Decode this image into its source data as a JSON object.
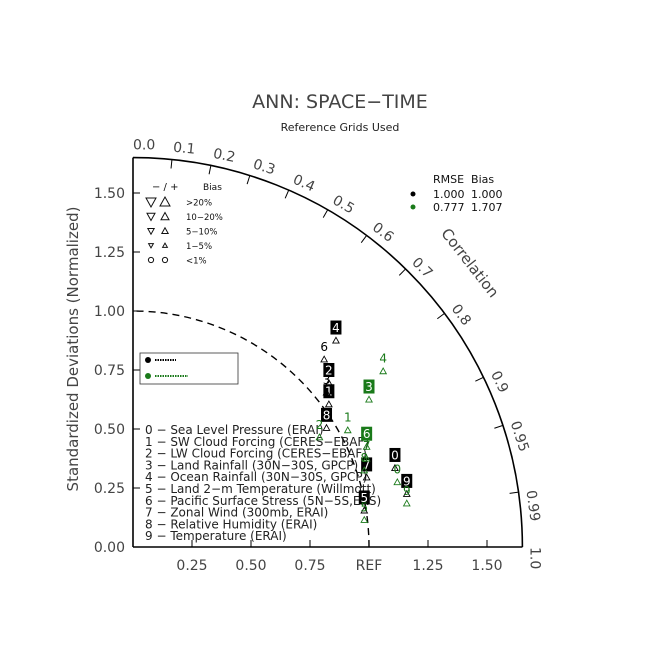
{
  "chart_data": {
    "type": "taylor-diagram",
    "title": "ANN: SPACE−TIME",
    "subtitle": "Reference Grids Used",
    "ylabel": "Standardized Deviations (Normalized)",
    "arc_label": "Correlation",
    "std_max": 1.65,
    "x_tick_labels": [
      {
        "value": 0.25,
        "label": "0.25"
      },
      {
        "value": 0.5,
        "label": "0.50"
      },
      {
        "value": 0.75,
        "label": "0.75"
      },
      {
        "value": 1.0,
        "label": "REF"
      },
      {
        "value": 1.25,
        "label": "1.25"
      },
      {
        "value": 1.5,
        "label": "1.50"
      }
    ],
    "y_tick_labels": [
      {
        "value": 0.0,
        "label": "0.00"
      },
      {
        "value": 0.25,
        "label": "0.25"
      },
      {
        "value": 0.5,
        "label": "0.50"
      },
      {
        "value": 0.75,
        "label": "0.75"
      },
      {
        "value": 1.0,
        "label": "1.00"
      },
      {
        "value": 1.25,
        "label": "1.25"
      },
      {
        "value": 1.5,
        "label": "1.50"
      }
    ],
    "correlation_ticks": [
      {
        "value": 0.0,
        "label": "0.0"
      },
      {
        "value": 0.1,
        "label": "0.1"
      },
      {
        "value": 0.2,
        "label": "0.2"
      },
      {
        "value": 0.3,
        "label": "0.3"
      },
      {
        "value": 0.4,
        "label": "0.4"
      },
      {
        "value": 0.5,
        "label": "0.5"
      },
      {
        "value": 0.6,
        "label": "0.6"
      },
      {
        "value": 0.7,
        "label": "0.7"
      },
      {
        "value": 0.8,
        "label": "0.8"
      },
      {
        "value": 0.9,
        "label": "0.9"
      },
      {
        "value": 0.95,
        "label": "0.95"
      },
      {
        "value": 0.99,
        "label": "0.99"
      },
      {
        "value": 1.0,
        "label": "1.0"
      }
    ],
    "bias_legend": {
      "header_symbol": "− / +",
      "header_label": "Bias",
      "rows": [
        {
          "label": ">20%",
          "size": 5
        },
        {
          "label": "10−20%",
          "size": 4
        },
        {
          "label": "5−10%",
          "size": 3.2
        },
        {
          "label": "1−5%",
          "size": 2.4
        },
        {
          "label": "<1%",
          "size": 2.6
        }
      ]
    },
    "rmse_legend": {
      "header": "RMSE  Bias",
      "rows": [
        {
          "color": "#000000",
          "rmse": "1.000",
          "bias": "1.000"
        },
        {
          "color": "#1a7a1a",
          "rmse": "0.777",
          "bias": "1.707"
        }
      ]
    },
    "variable_list": [
      "0 − Sea Level Pressure (ERAI)",
      "1 − SW Cloud Forcing (CERES−EBAF)",
      "2 − LW Cloud Forcing (CERES−EBAF)",
      "3 − Land Rainfall (30N−30S, GPCP)",
      "4 − Ocean Rainfall (30N−30S, GPCP)",
      "5 − Land 2−m Temperature (Willmott)",
      "6 − Pacific Surface Stress (5N−5S,ERS)",
      "7 − Zonal Wind (300mb, ERAI)",
      "8 − Relative Humidity (ERAI)",
      "9 − Temperature (ERAI)"
    ],
    "series": [
      {
        "color": "#000000",
        "points": [
          {
            "id": "0",
            "x": 1.11,
            "y": 0.39,
            "boxed": true
          },
          {
            "id": "1",
            "x": 0.83,
            "y": 0.66,
            "boxed": true
          },
          {
            "id": "2",
            "x": 0.83,
            "y": 0.75,
            "boxed": true
          },
          {
            "id": "3",
            "x": 0.82,
            "y": 0.71,
            "boxed": false
          },
          {
            "id": "4",
            "x": 0.86,
            "y": 0.93,
            "boxed": true
          },
          {
            "id": "5",
            "x": 0.98,
            "y": 0.21,
            "boxed": true
          },
          {
            "id": "6",
            "x": 0.81,
            "y": 0.85,
            "boxed": false
          },
          {
            "id": "7",
            "x": 0.99,
            "y": 0.35,
            "boxed": true
          },
          {
            "id": "8",
            "x": 0.82,
            "y": 0.56,
            "boxed": true
          },
          {
            "id": "9",
            "x": 1.16,
            "y": 0.28,
            "boxed": true
          }
        ]
      },
      {
        "color": "#1a7a1a",
        "points": [
          {
            "id": "0",
            "x": 1.12,
            "y": 0.33,
            "boxed": false
          },
          {
            "id": "1",
            "x": 0.91,
            "y": 0.55,
            "boxed": false
          },
          {
            "id": "2",
            "x": 0.79,
            "y": 0.52,
            "boxed": false
          },
          {
            "id": "3",
            "x": 1.0,
            "y": 0.68,
            "boxed": true
          },
          {
            "id": "4",
            "x": 1.06,
            "y": 0.8,
            "boxed": false
          },
          {
            "id": "5",
            "x": 0.98,
            "y": 0.17,
            "boxed": false
          },
          {
            "id": "6",
            "x": 0.99,
            "y": 0.48,
            "boxed": true
          },
          {
            "id": "7",
            "x": 0.99,
            "y": 0.43,
            "boxed": false
          },
          {
            "id": "8",
            "x": 0.98,
            "y": 0.38,
            "boxed": false
          },
          {
            "id": "9",
            "x": 1.16,
            "y": 0.24,
            "boxed": false
          }
        ]
      }
    ]
  }
}
